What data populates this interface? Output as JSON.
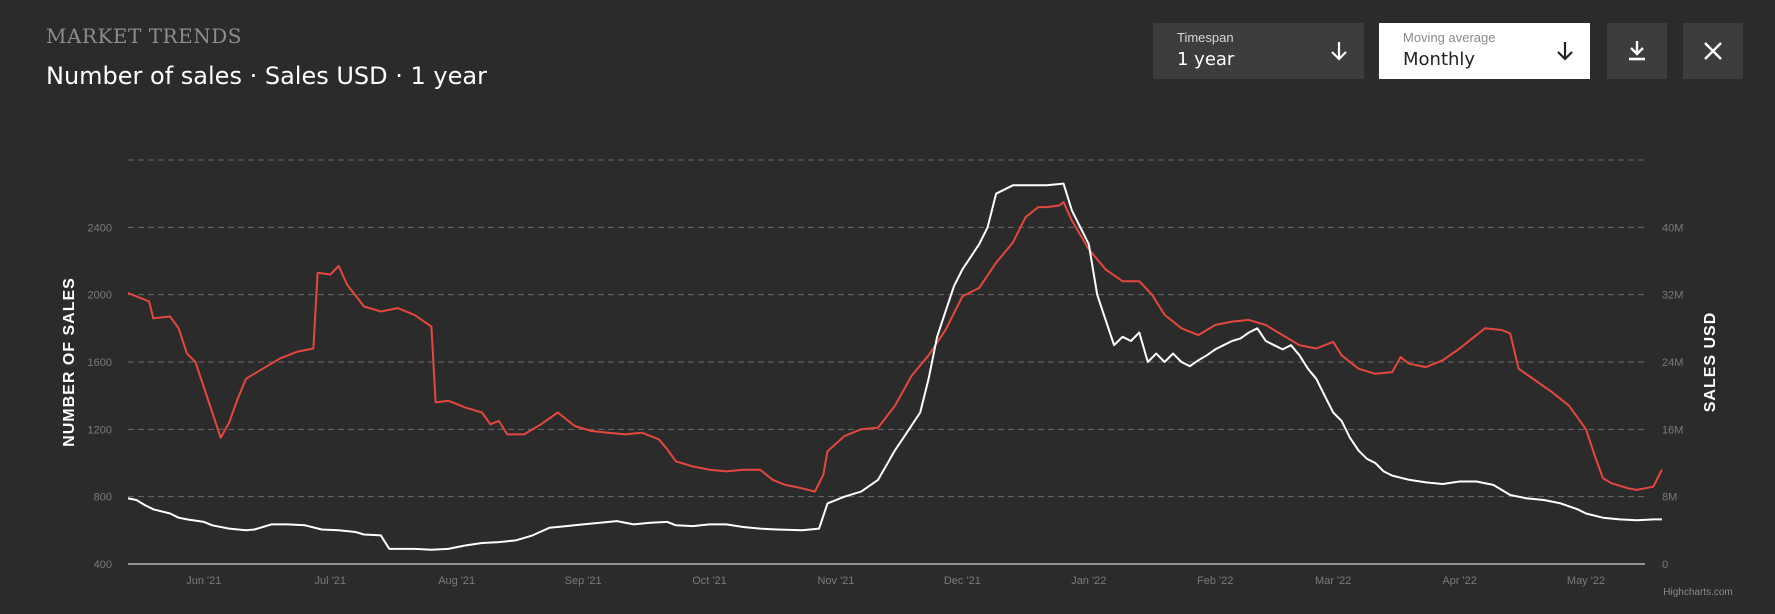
{
  "header": {
    "kicker": "MARKET TRENDS",
    "title": "Number of sales · Sales USD · 1 year"
  },
  "controls": {
    "timespan": {
      "label": "Timespan",
      "value": "1 year"
    },
    "moving_average": {
      "label": "Moving average",
      "value": "Monthly"
    }
  },
  "icons": {
    "download": "download-icon",
    "close": "close-icon",
    "dropdown": "arrow-down-icon"
  },
  "credits": "Highcharts.com",
  "colors": {
    "background": "#2b2b2b",
    "number_of_sales": "#e5473f",
    "sales_usd": "#ffffff",
    "grid": "#6a6a6a",
    "axis_text": "#7a7a7a"
  },
  "chart_data": {
    "type": "line",
    "x_labels": [
      "Jun '21",
      "Jul '21",
      "Aug '21",
      "Sep '21",
      "Oct '21",
      "Nov '21",
      "Dec '21",
      "Jan '22",
      "Feb '22",
      "Mar '22",
      "Apr '22",
      "May '22"
    ],
    "x_range": [
      0,
      360
    ],
    "x_label_positions": [
      18,
      48,
      78,
      108,
      138,
      168,
      198,
      228,
      258,
      286,
      316,
      346
    ],
    "y_left": {
      "label": "NUMBER OF SALES",
      "min": 400,
      "max": 2800,
      "ticks": [
        400,
        800,
        1200,
        1600,
        2000,
        2400
      ],
      "tick_labels": [
        "400",
        "800",
        "1200",
        "1600",
        "2000",
        "2400"
      ]
    },
    "y_right": {
      "label": "SALES USD",
      "min": 0,
      "max": 48000000,
      "ticks": [
        0,
        8000000,
        16000000,
        24000000,
        32000000,
        40000000
      ],
      "tick_labels": [
        "0",
        "8M",
        "16M",
        "24M",
        "32M",
        "40M"
      ]
    },
    "grid": true,
    "series": [
      {
        "axis": "left",
        "color": "#e5473f",
        "points": [
          [
            0,
            2010
          ],
          [
            5,
            1960
          ],
          [
            6,
            1860
          ],
          [
            10,
            1870
          ],
          [
            12,
            1800
          ],
          [
            14,
            1650
          ],
          [
            16,
            1600
          ],
          [
            18,
            1450
          ],
          [
            20,
            1300
          ],
          [
            22,
            1150
          ],
          [
            24,
            1240
          ],
          [
            26,
            1380
          ],
          [
            28,
            1500
          ],
          [
            32,
            1560
          ],
          [
            36,
            1620
          ],
          [
            40,
            1660
          ],
          [
            44,
            1680
          ],
          [
            45,
            2130
          ],
          [
            48,
            2120
          ],
          [
            50,
            2170
          ],
          [
            52,
            2060
          ],
          [
            56,
            1930
          ],
          [
            60,
            1900
          ],
          [
            64,
            1920
          ],
          [
            68,
            1880
          ],
          [
            72,
            1810
          ],
          [
            73,
            1360
          ],
          [
            76,
            1370
          ],
          [
            80,
            1330
          ],
          [
            84,
            1300
          ],
          [
            86,
            1230
          ],
          [
            88,
            1250
          ],
          [
            90,
            1170
          ],
          [
            94,
            1170
          ],
          [
            98,
            1230
          ],
          [
            102,
            1300
          ],
          [
            106,
            1220
          ],
          [
            110,
            1190
          ],
          [
            114,
            1180
          ],
          [
            118,
            1170
          ],
          [
            122,
            1180
          ],
          [
            126,
            1140
          ],
          [
            128,
            1080
          ],
          [
            130,
            1010
          ],
          [
            134,
            980
          ],
          [
            138,
            960
          ],
          [
            142,
            950
          ],
          [
            146,
            960
          ],
          [
            150,
            960
          ],
          [
            153,
            900
          ],
          [
            156,
            870
          ],
          [
            160,
            850
          ],
          [
            163,
            830
          ],
          [
            165,
            930
          ],
          [
            166,
            1070
          ],
          [
            170,
            1160
          ],
          [
            174,
            1200
          ],
          [
            178,
            1210
          ],
          [
            182,
            1340
          ],
          [
            186,
            1520
          ],
          [
            190,
            1640
          ],
          [
            194,
            1790
          ],
          [
            198,
            1990
          ],
          [
            202,
            2040
          ],
          [
            206,
            2190
          ],
          [
            210,
            2310
          ],
          [
            213,
            2460
          ],
          [
            216,
            2520
          ],
          [
            218,
            2520
          ],
          [
            221,
            2530
          ],
          [
            222,
            2550
          ],
          [
            224,
            2440
          ],
          [
            228,
            2270
          ],
          [
            232,
            2150
          ],
          [
            236,
            2080
          ],
          [
            240,
            2080
          ],
          [
            243,
            2000
          ],
          [
            246,
            1880
          ],
          [
            250,
            1800
          ],
          [
            254,
            1760
          ],
          [
            258,
            1820
          ],
          [
            262,
            1840
          ],
          [
            266,
            1850
          ],
          [
            270,
            1820
          ],
          [
            274,
            1760
          ],
          [
            278,
            1700
          ],
          [
            282,
            1680
          ],
          [
            286,
            1720
          ],
          [
            288,
            1640
          ],
          [
            292,
            1560
          ],
          [
            296,
            1530
          ],
          [
            300,
            1540
          ],
          [
            302,
            1630
          ],
          [
            304,
            1590
          ],
          [
            308,
            1570
          ],
          [
            312,
            1610
          ],
          [
            316,
            1680
          ],
          [
            318,
            1720
          ],
          [
            320,
            1760
          ],
          [
            322,
            1800
          ],
          [
            326,
            1790
          ],
          [
            328,
            1770
          ],
          [
            330,
            1560
          ],
          [
            334,
            1490
          ],
          [
            338,
            1420
          ],
          [
            342,
            1340
          ],
          [
            346,
            1200
          ],
          [
            348,
            1050
          ],
          [
            350,
            910
          ],
          [
            352,
            880
          ],
          [
            356,
            850
          ],
          [
            358,
            840
          ],
          [
            360,
            850
          ],
          [
            362,
            860
          ],
          [
            364,
            960
          ]
        ]
      },
      {
        "axis": "right",
        "color": "#ffffff",
        "points": [
          [
            0,
            7800000
          ],
          [
            2,
            7600000
          ],
          [
            4,
            7000000
          ],
          [
            6,
            6500000
          ],
          [
            10,
            6000000
          ],
          [
            12,
            5500000
          ],
          [
            14,
            5300000
          ],
          [
            18,
            5000000
          ],
          [
            20,
            4600000
          ],
          [
            24,
            4200000
          ],
          [
            28,
            4000000
          ],
          [
            30,
            4100000
          ],
          [
            34,
            4700000
          ],
          [
            38,
            4700000
          ],
          [
            42,
            4600000
          ],
          [
            46,
            4100000
          ],
          [
            50,
            4000000
          ],
          [
            54,
            3800000
          ],
          [
            56,
            3500000
          ],
          [
            60,
            3400000
          ],
          [
            62,
            1800000
          ],
          [
            68,
            1800000
          ],
          [
            72,
            1700000
          ],
          [
            76,
            1800000
          ],
          [
            80,
            2200000
          ],
          [
            84,
            2500000
          ],
          [
            88,
            2600000
          ],
          [
            92,
            2800000
          ],
          [
            96,
            3400000
          ],
          [
            100,
            4300000
          ],
          [
            104,
            4500000
          ],
          [
            108,
            4700000
          ],
          [
            112,
            4900000
          ],
          [
            116,
            5100000
          ],
          [
            120,
            4700000
          ],
          [
            124,
            4900000
          ],
          [
            128,
            5000000
          ],
          [
            130,
            4600000
          ],
          [
            134,
            4500000
          ],
          [
            138,
            4700000
          ],
          [
            142,
            4700000
          ],
          [
            146,
            4400000
          ],
          [
            150,
            4200000
          ],
          [
            154,
            4100000
          ],
          [
            160,
            4000000
          ],
          [
            164,
            4200000
          ],
          [
            166,
            7200000
          ],
          [
            170,
            8000000
          ],
          [
            174,
            8600000
          ],
          [
            178,
            10000000
          ],
          [
            182,
            13500000
          ],
          [
            184,
            15000000
          ],
          [
            188,
            18000000
          ],
          [
            190,
            22000000
          ],
          [
            192,
            27000000
          ],
          [
            196,
            33000000
          ],
          [
            198,
            35000000
          ],
          [
            202,
            38000000
          ],
          [
            204,
            40000000
          ],
          [
            206,
            44000000
          ],
          [
            210,
            45000000
          ],
          [
            214,
            45000000
          ],
          [
            218,
            45000000
          ],
          [
            222,
            45200000
          ],
          [
            224,
            42000000
          ],
          [
            228,
            38000000
          ],
          [
            230,
            32000000
          ],
          [
            232,
            29000000
          ],
          [
            234,
            26000000
          ],
          [
            236,
            27000000
          ],
          [
            238,
            26500000
          ],
          [
            240,
            27500000
          ],
          [
            242,
            24000000
          ],
          [
            244,
            25000000
          ],
          [
            246,
            24000000
          ],
          [
            248,
            25000000
          ],
          [
            250,
            24000000
          ],
          [
            252,
            23500000
          ],
          [
            254,
            24200000
          ],
          [
            256,
            24800000
          ],
          [
            258,
            25500000
          ],
          [
            260,
            26000000
          ],
          [
            262,
            26500000
          ],
          [
            264,
            26800000
          ],
          [
            266,
            27500000
          ],
          [
            268,
            28000000
          ],
          [
            270,
            26500000
          ],
          [
            272,
            26000000
          ],
          [
            274,
            25500000
          ],
          [
            276,
            26000000
          ],
          [
            278,
            24800000
          ],
          [
            280,
            23200000
          ],
          [
            282,
            22000000
          ],
          [
            284,
            20000000
          ],
          [
            286,
            18000000
          ],
          [
            288,
            17000000
          ],
          [
            290,
            15000000
          ],
          [
            292,
            13500000
          ],
          [
            294,
            12500000
          ],
          [
            296,
            12000000
          ],
          [
            298,
            11000000
          ],
          [
            300,
            10500000
          ],
          [
            304,
            10000000
          ],
          [
            308,
            9700000
          ],
          [
            312,
            9500000
          ],
          [
            316,
            9800000
          ],
          [
            320,
            9800000
          ],
          [
            324,
            9400000
          ],
          [
            326,
            8800000
          ],
          [
            328,
            8200000
          ],
          [
            332,
            7800000
          ],
          [
            336,
            7600000
          ],
          [
            340,
            7200000
          ],
          [
            344,
            6500000
          ],
          [
            346,
            6000000
          ],
          [
            350,
            5500000
          ],
          [
            354,
            5300000
          ],
          [
            358,
            5200000
          ],
          [
            362,
            5300000
          ],
          [
            364,
            5300000
          ]
        ]
      }
    ]
  }
}
